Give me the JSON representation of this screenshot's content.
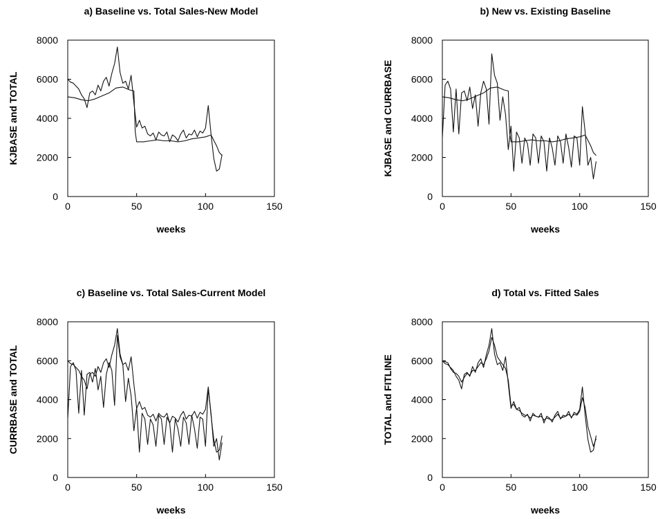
{
  "chart_data": [
    {
      "type": "line",
      "title": "a) Baseline vs. Total Sales-New Model",
      "xlabel": "weeks",
      "ylabel": "KJBASE and TOTAL",
      "xlim": [
        0,
        150
      ],
      "ylim": [
        0,
        8000
      ],
      "xticks": [
        0,
        50,
        100,
        150
      ],
      "yticks": [
        0,
        2000,
        4000,
        6000,
        8000
      ],
      "series": [
        {
          "x": [
            0,
            2,
            4,
            6,
            8,
            10,
            12,
            14,
            16,
            18,
            20,
            22,
            24,
            26,
            28,
            30,
            32,
            34,
            36,
            38,
            40,
            42,
            44,
            46,
            48,
            50,
            52,
            54,
            56,
            58,
            60,
            62,
            64,
            66,
            68,
            70,
            72,
            74,
            76,
            78,
            80,
            82,
            84,
            86,
            88,
            90,
            92,
            94,
            96,
            98,
            100,
            102,
            104,
            106,
            108,
            110,
            112
          ],
          "y": [
            6000,
            5850,
            5800,
            5650,
            5500,
            5200,
            5000,
            4550,
            5300,
            5400,
            5200,
            5700,
            5400,
            5900,
            6100,
            5650,
            6300,
            6800,
            7650,
            6350,
            5800,
            5900,
            5500,
            6200,
            4800,
            3550,
            3900,
            3500,
            3600,
            3200,
            3100,
            3250,
            2900,
            3300,
            3150,
            3100,
            3300,
            2800,
            3150,
            3050,
            2850,
            3200,
            3400,
            3000,
            3200,
            3150,
            3400,
            3050,
            3350,
            3250,
            3500,
            4650,
            3200,
            1950,
            1300,
            1400,
            2150
          ]
        },
        {
          "x": [
            0,
            5,
            10,
            15,
            20,
            25,
            30,
            35,
            40,
            45,
            48,
            49,
            50,
            55,
            60,
            65,
            70,
            75,
            80,
            85,
            90,
            95,
            100,
            104,
            108,
            110,
            112
          ],
          "y": [
            5100,
            5050,
            4950,
            4900,
            5000,
            5150,
            5300,
            5550,
            5600,
            5450,
            5400,
            3300,
            2800,
            2800,
            2850,
            2900,
            2850,
            2850,
            2800,
            2850,
            2950,
            3000,
            3050,
            3150,
            2600,
            2250,
            2100
          ]
        }
      ]
    },
    {
      "type": "line",
      "title": "b) New vs. Existing Baseline",
      "xlabel": "weeks",
      "ylabel": "KJBASE and CURRBASE",
      "xlim": [
        0,
        150
      ],
      "ylim": [
        0,
        8000
      ],
      "xticks": [
        0,
        50,
        100,
        150
      ],
      "yticks": [
        0,
        2000,
        4000,
        6000,
        8000
      ],
      "series": [
        {
          "x": [
            0,
            2,
            4,
            6,
            8,
            10,
            12,
            14,
            16,
            18,
            20,
            22,
            24,
            26,
            28,
            30,
            32,
            34,
            36,
            38,
            40,
            42,
            44,
            46,
            48,
            50,
            52,
            54,
            56,
            58,
            60,
            62,
            64,
            66,
            68,
            70,
            72,
            74,
            76,
            78,
            80,
            82,
            84,
            86,
            88,
            90,
            92,
            94,
            96,
            98,
            100,
            102,
            104,
            106,
            108,
            110,
            112
          ],
          "y": [
            3000,
            5700,
            5900,
            5500,
            3300,
            5500,
            3200,
            5300,
            5400,
            4900,
            5600,
            4500,
            5200,
            3600,
            5300,
            5900,
            5500,
            3700,
            7300,
            6200,
            5800,
            3900,
            5100,
            4200,
            2400,
            3600,
            1300,
            3300,
            3000,
            1700,
            3000,
            2700,
            1600,
            3200,
            3000,
            1700,
            3100,
            2800,
            1300,
            3000,
            2500,
            1600,
            3100,
            2800,
            1700,
            3200,
            2500,
            1500,
            3100,
            3000,
            1600,
            4600,
            3300,
            1600,
            2000,
            900,
            1800
          ]
        },
        {
          "x": [
            0,
            5,
            10,
            15,
            20,
            25,
            30,
            35,
            40,
            45,
            48,
            49,
            50,
            55,
            60,
            65,
            70,
            75,
            80,
            85,
            90,
            95,
            100,
            104,
            108,
            110,
            112
          ],
          "y": [
            5100,
            5050,
            4950,
            4900,
            5000,
            5150,
            5300,
            5550,
            5600,
            5450,
            5400,
            3300,
            2800,
            2800,
            2850,
            2900,
            2850,
            2850,
            2800,
            2850,
            2950,
            3000,
            3050,
            3150,
            2600,
            2250,
            2100
          ]
        }
      ]
    },
    {
      "type": "line",
      "title": "c) Baseline vs. Total Sales-Current Model",
      "xlabel": "weeks",
      "ylabel": "CURRBASE and TOTAL",
      "xlim": [
        0,
        150
      ],
      "ylim": [
        0,
        8000
      ],
      "xticks": [
        0,
        50,
        100,
        150
      ],
      "yticks": [
        0,
        2000,
        4000,
        6000,
        8000
      ],
      "series": [
        {
          "x": [
            0,
            2,
            4,
            6,
            8,
            10,
            12,
            14,
            16,
            18,
            20,
            22,
            24,
            26,
            28,
            30,
            32,
            34,
            36,
            38,
            40,
            42,
            44,
            46,
            48,
            50,
            52,
            54,
            56,
            58,
            60,
            62,
            64,
            66,
            68,
            70,
            72,
            74,
            76,
            78,
            80,
            82,
            84,
            86,
            88,
            90,
            92,
            94,
            96,
            98,
            100,
            102,
            104,
            106,
            108,
            110,
            112
          ],
          "y": [
            6000,
            5850,
            5800,
            5650,
            5500,
            5200,
            5000,
            4550,
            5300,
            5400,
            5200,
            5700,
            5400,
            5900,
            6100,
            5650,
            6300,
            6800,
            7650,
            6350,
            5800,
            5900,
            5500,
            6200,
            4800,
            3550,
            3900,
            3500,
            3600,
            3200,
            3100,
            3250,
            2900,
            3300,
            3150,
            3100,
            3300,
            2800,
            3150,
            3050,
            2850,
            3200,
            3400,
            3000,
            3200,
            3150,
            3400,
            3050,
            3350,
            3250,
            3500,
            4650,
            3200,
            1950,
            1300,
            1400,
            2150
          ]
        },
        {
          "x": [
            0,
            2,
            4,
            6,
            8,
            10,
            12,
            14,
            16,
            18,
            20,
            22,
            24,
            26,
            28,
            30,
            32,
            34,
            36,
            38,
            40,
            42,
            44,
            46,
            48,
            50,
            52,
            54,
            56,
            58,
            60,
            62,
            64,
            66,
            68,
            70,
            72,
            74,
            76,
            78,
            80,
            82,
            84,
            86,
            88,
            90,
            92,
            94,
            96,
            98,
            100,
            102,
            104,
            106,
            108,
            110,
            112
          ],
          "y": [
            3000,
            5700,
            5900,
            5500,
            3300,
            5500,
            3200,
            5300,
            5400,
            4900,
            5600,
            4500,
            5200,
            3600,
            5300,
            5900,
            5500,
            3700,
            7300,
            6200,
            5800,
            3900,
            5100,
            4200,
            2400,
            3600,
            1300,
            3300,
            3000,
            1700,
            3000,
            2700,
            1600,
            3200,
            3000,
            1700,
            3100,
            2800,
            1300,
            3000,
            2500,
            1600,
            3100,
            2800,
            1700,
            3200,
            2500,
            1500,
            3100,
            3000,
            1600,
            4600,
            3300,
            1600,
            2000,
            900,
            1800
          ]
        }
      ]
    },
    {
      "type": "line",
      "title": "d) Total vs. Fitted Sales",
      "xlabel": "weeks",
      "ylabel": "TOTAL and FITLINE",
      "xlim": [
        0,
        150
      ],
      "ylim": [
        0,
        8000
      ],
      "xticks": [
        0,
        50,
        100,
        150
      ],
      "yticks": [
        0,
        2000,
        4000,
        6000,
        8000
      ],
      "series": [
        {
          "x": [
            0,
            2,
            4,
            6,
            8,
            10,
            12,
            14,
            16,
            18,
            20,
            22,
            24,
            26,
            28,
            30,
            32,
            34,
            36,
            38,
            40,
            42,
            44,
            46,
            48,
            50,
            52,
            54,
            56,
            58,
            60,
            62,
            64,
            66,
            68,
            70,
            72,
            74,
            76,
            78,
            80,
            82,
            84,
            86,
            88,
            90,
            92,
            94,
            96,
            98,
            100,
            102,
            104,
            106,
            108,
            110,
            112
          ],
          "y": [
            6000,
            5850,
            5800,
            5650,
            5500,
            5200,
            5000,
            4550,
            5300,
            5400,
            5200,
            5700,
            5400,
            5900,
            6100,
            5650,
            6300,
            6800,
            7650,
            6350,
            5800,
            5900,
            5500,
            6200,
            4800,
            3550,
            3900,
            3500,
            3600,
            3200,
            3100,
            3250,
            2900,
            3300,
            3150,
            3100,
            3300,
            2800,
            3150,
            3050,
            2850,
            3200,
            3400,
            3000,
            3200,
            3150,
            3400,
            3050,
            3350,
            3250,
            3500,
            4650,
            3200,
            1950,
            1300,
            1400,
            2150
          ]
        },
        {
          "x": [
            0,
            2,
            4,
            6,
            8,
            10,
            12,
            14,
            16,
            18,
            20,
            22,
            24,
            26,
            28,
            30,
            32,
            34,
            36,
            38,
            40,
            42,
            44,
            46,
            48,
            50,
            52,
            54,
            56,
            58,
            60,
            62,
            64,
            66,
            68,
            70,
            72,
            74,
            76,
            78,
            80,
            82,
            84,
            86,
            88,
            90,
            92,
            94,
            96,
            98,
            100,
            102,
            104,
            106,
            108,
            110,
            112
          ],
          "y": [
            6000,
            5950,
            5900,
            5600,
            5400,
            5350,
            5200,
            4900,
            5150,
            5350,
            5250,
            5500,
            5500,
            5700,
            5900,
            5800,
            6100,
            6500,
            7200,
            6800,
            6200,
            6000,
            5800,
            5600,
            5000,
            3700,
            3750,
            3500,
            3450,
            3300,
            3200,
            3200,
            3050,
            3200,
            3150,
            3100,
            3150,
            2950,
            3050,
            3000,
            2950,
            3100,
            3250,
            3050,
            3100,
            3150,
            3250,
            3100,
            3250,
            3200,
            3400,
            4100,
            3600,
            2600,
            2100,
            1600,
            2000
          ]
        }
      ]
    }
  ]
}
